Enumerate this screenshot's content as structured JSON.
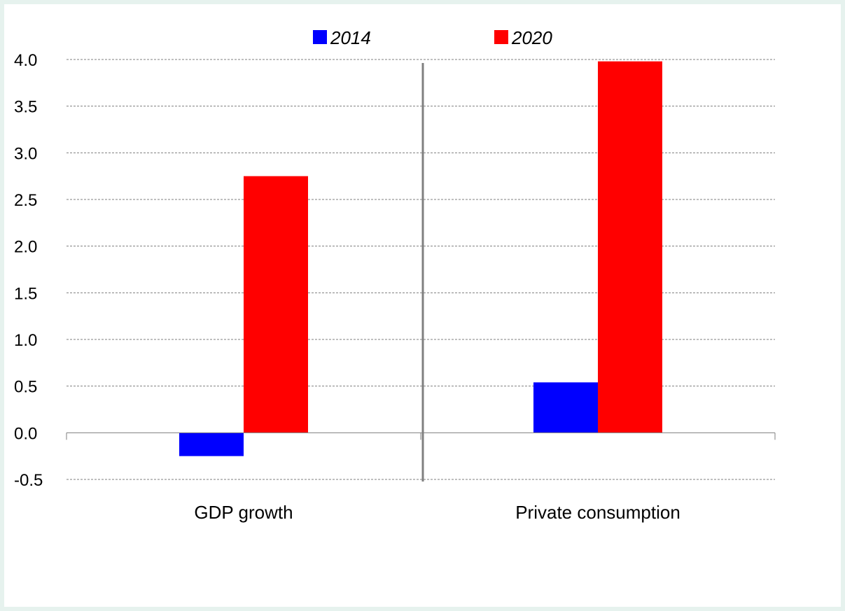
{
  "chart_data": {
    "type": "bar",
    "categories": [
      "GDP growth",
      "Private consumption"
    ],
    "series": [
      {
        "name": "2014",
        "values": [
          -0.25,
          0.54
        ],
        "color": "#0000ff"
      },
      {
        "name": "2020",
        "values": [
          2.75,
          3.98
        ],
        "color": "#ff0000"
      }
    ],
    "ylim": [
      -0.5,
      4.0
    ],
    "yticks": [
      "-0.5",
      "0.0",
      "0.5",
      "1.0",
      "1.5",
      "2.0",
      "2.5",
      "3.0",
      "3.5",
      "4.0"
    ],
    "ytick_values": [
      -0.5,
      0.0,
      0.5,
      1.0,
      1.5,
      2.0,
      2.5,
      3.0,
      3.5,
      4.0
    ],
    "grid": true,
    "legend_position": "top-center",
    "title": "",
    "xlabel": "",
    "ylabel": ""
  }
}
